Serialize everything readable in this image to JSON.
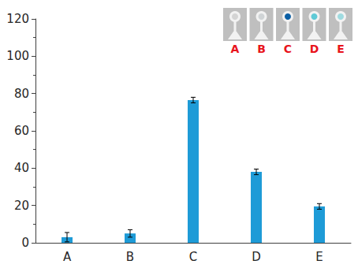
{
  "chart_data": {
    "type": "bar",
    "categories": [
      "A",
      "B",
      "C",
      "D",
      "E"
    ],
    "values": [
      3,
      5,
      76.5,
      38,
      19.5
    ],
    "errors": [
      2.5,
      2,
      1.5,
      1.5,
      1.5
    ],
    "color": "#1e9bd7",
    "ylim": [
      0,
      120
    ],
    "yticks": [
      0,
      20,
      40,
      60,
      80,
      100,
      120
    ],
    "grid": false
  }
}
